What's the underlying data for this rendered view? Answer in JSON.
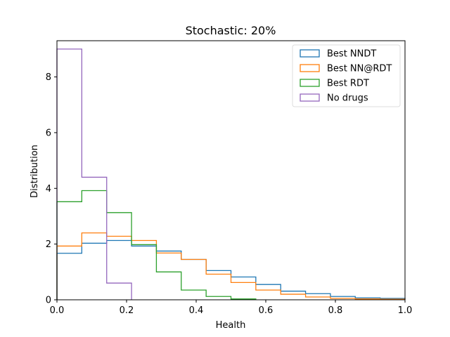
{
  "chart_data": {
    "type": "histogram-step",
    "title": "Stochastic: 20%",
    "xlabel": "Health",
    "ylabel": "Distribution",
    "xlim": [
      0,
      1.0
    ],
    "ylim": [
      0,
      9.3
    ],
    "xticks": [
      0.0,
      0.2,
      0.4,
      0.6,
      0.8,
      1.0
    ],
    "xtick_labels": [
      "0.0",
      "0.2",
      "0.4",
      "0.6",
      "0.8",
      "1.0"
    ],
    "yticks": [
      0,
      2,
      4,
      6,
      8
    ],
    "ytick_labels": [
      "0",
      "2",
      "4",
      "6",
      "8"
    ],
    "legend_position": "top-right",
    "series": [
      {
        "name": "Best NNDT",
        "color": "#1f77b4",
        "bin_edges": [
          0,
          0.0714,
          0.1429,
          0.2143,
          0.2857,
          0.3571,
          0.4286,
          0.5,
          0.5714,
          0.6429,
          0.7143,
          0.7857,
          0.8571,
          0.9286,
          1.0
        ],
        "values": [
          1.67,
          2.03,
          2.13,
          1.93,
          1.75,
          1.45,
          1.05,
          0.82,
          0.55,
          0.31,
          0.22,
          0.12,
          0.07,
          0.05
        ]
      },
      {
        "name": "Best NN@RDT",
        "color": "#ff7f0e",
        "bin_edges": [
          0,
          0.0714,
          0.1429,
          0.2143,
          0.2857,
          0.3571,
          0.4286,
          0.5,
          0.5714,
          0.6429,
          0.7143,
          0.7857,
          0.8571,
          0.9286,
          1.0
        ],
        "values": [
          1.93,
          2.4,
          2.28,
          2.13,
          1.68,
          1.45,
          0.92,
          0.62,
          0.35,
          0.2,
          0.1,
          0.05,
          0.03,
          0.02
        ]
      },
      {
        "name": "Best RDT",
        "color": "#2ca02c",
        "bin_edges": [
          0,
          0.0714,
          0.1429,
          0.2143,
          0.2857,
          0.3571,
          0.4286,
          0.5,
          0.5714
        ],
        "values": [
          3.52,
          3.92,
          3.13,
          1.98,
          1.0,
          0.35,
          0.12,
          0.03
        ]
      },
      {
        "name": "No drugs",
        "color": "#9467bd",
        "bin_edges": [
          0,
          0.0714,
          0.1429,
          0.2143
        ],
        "values": [
          9.0,
          4.4,
          0.6
        ]
      }
    ]
  }
}
